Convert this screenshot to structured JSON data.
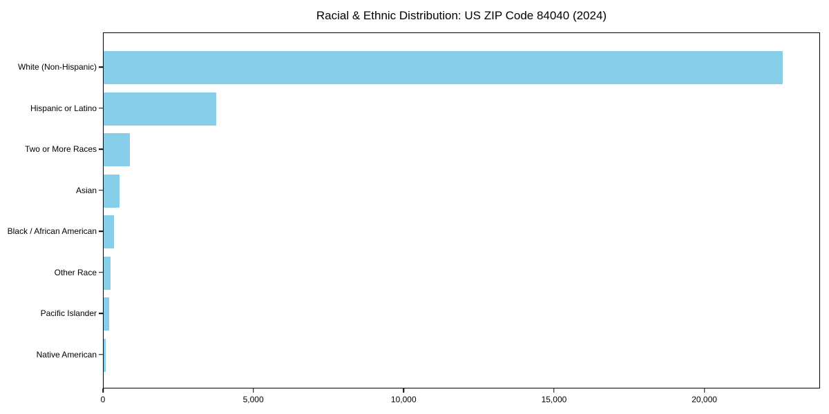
{
  "title": "Racial & Ethnic Distribution: US ZIP Code 84040 (2024)",
  "chart_data": {
    "type": "bar",
    "orientation": "horizontal",
    "title": "Racial & Ethnic Distribution: US ZIP Code 84040 (2024)",
    "categories": [
      "White (Non-Hispanic)",
      "Hispanic or Latino",
      "Two or More Races",
      "Asian",
      "Black / African American",
      "Other Race",
      "Pacific Islander",
      "Native American"
    ],
    "values": [
      22590,
      3740,
      875,
      530,
      345,
      230,
      185,
      70
    ],
    "xlabel": "",
    "ylabel": "",
    "xlim": [
      0,
      23800
    ],
    "xticks": [
      0,
      5000,
      10000,
      15000,
      20000
    ],
    "xtick_labels": [
      "0",
      "5,000",
      "10,000",
      "15,000",
      "20,000"
    ],
    "bar_color": "#87CEEB",
    "spine_color": "#000000",
    "grid": false,
    "legend": null
  }
}
